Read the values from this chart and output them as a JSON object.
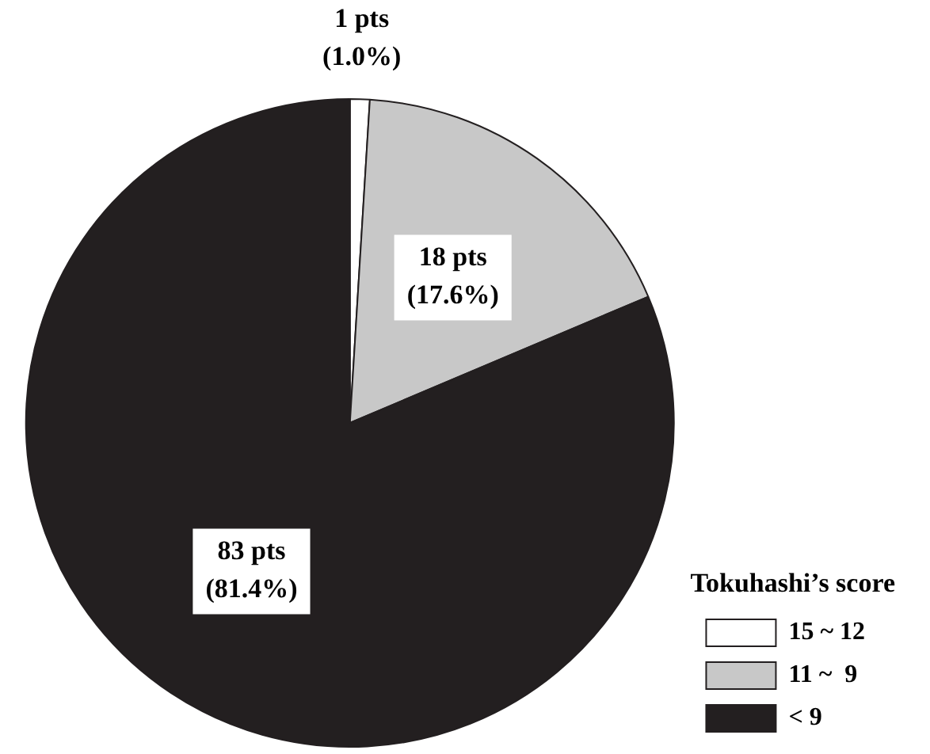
{
  "chart_data": {
    "type": "pie",
    "categories": [
      "15 ~ 12",
      "11 ~  9",
      "< 9"
    ],
    "values": [
      1,
      18,
      83
    ],
    "colors": [
      "#ffffff",
      "#c8c8c8",
      "#231f20"
    ],
    "value_labels": [
      "1 pts\n(1.0%)",
      "18 pts\n(17.6%)",
      "83 pts\n(81.4%)"
    ],
    "legend_title": "Tokuhashi’s score",
    "legend": "bottom right"
  }
}
